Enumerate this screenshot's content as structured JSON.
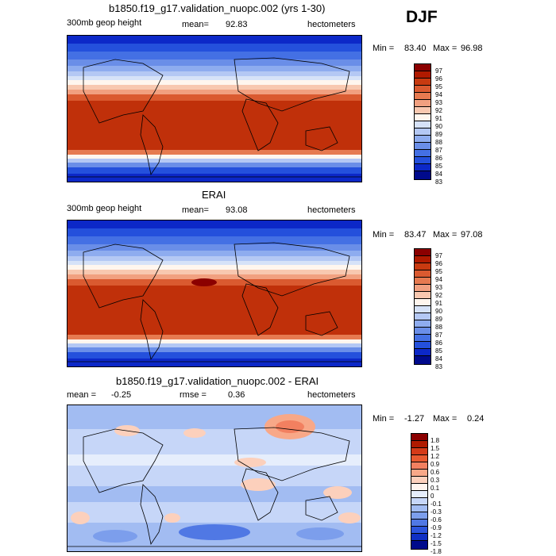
{
  "season": "DJF",
  "panels": [
    {
      "title": "b1850.f19_g17.validation_nuopc.002 (yrs 1-30)",
      "left_label": "300mb geop height",
      "mean_label": "mean=",
      "mean_value": "92.83",
      "units": "hectometers",
      "min_label": "Min =",
      "min_value": "83.40",
      "max_label": "Max =",
      "max_value": "96.98",
      "colorbar": {
        "labels": [
          "97",
          "96",
          "95",
          "94",
          "93",
          "92",
          "91",
          "90",
          "89",
          "88",
          "87",
          "86",
          "85",
          "84",
          "83"
        ],
        "colors": [
          "#8b0000",
          "#b01a00",
          "#c83a10",
          "#da5a30",
          "#e67a50",
          "#f1a080",
          "#f8c8b0",
          "#fff6ee",
          "#d6e2f8",
          "#b4c8f4",
          "#8eacef",
          "#6a8ee8",
          "#4470e4",
          "#2450dc",
          "#0c28c8",
          "#000a8c"
        ]
      }
    },
    {
      "title": "ERAI",
      "left_label": "300mb geop height",
      "mean_label": "mean=",
      "mean_value": "93.08",
      "units": "hectometers",
      "min_label": "Min =",
      "min_value": "83.47",
      "max_label": "Max =",
      "max_value": "97.08",
      "colorbar": {
        "labels": [
          "97",
          "96",
          "95",
          "94",
          "93",
          "92",
          "91",
          "90",
          "89",
          "88",
          "87",
          "86",
          "85",
          "84",
          "83"
        ],
        "colors": [
          "#8b0000",
          "#b01a00",
          "#c83a10",
          "#da5a30",
          "#e67a50",
          "#f1a080",
          "#f8c8b0",
          "#fff6ee",
          "#d6e2f8",
          "#b4c8f4",
          "#8eacef",
          "#6a8ee8",
          "#4470e4",
          "#2450dc",
          "#0c28c8",
          "#000a8c"
        ]
      }
    },
    {
      "title": "b1850.f19_g17.validation_nuopc.002 - ERAI",
      "mean_label": "mean =",
      "mean_value": "-0.25",
      "rmse_label": "rmse =",
      "rmse_value": "0.36",
      "units": "hectometers",
      "min_label": "Min =",
      "min_value": "-1.27",
      "max_label": "Max =",
      "max_value": "0.24",
      "colorbar": {
        "labels": [
          "1.8",
          "1.5",
          "1.2",
          "0.9",
          "0.6",
          "0.3",
          "0.1",
          "0",
          "-0.1",
          "-0.3",
          "-0.6",
          "-0.9",
          "-1.2",
          "-1.5",
          "-1.8"
        ],
        "colors": [
          "#8b0000",
          "#b01a00",
          "#d43a18",
          "#e85a30",
          "#f28060",
          "#f8a888",
          "#fcd0bc",
          "#fff4ee",
          "#e6eefc",
          "#c6d6f8",
          "#a2bcf2",
          "#7c9eec",
          "#5078e4",
          "#2c54dc",
          "#1030c4",
          "#000a8c"
        ]
      }
    }
  ]
}
